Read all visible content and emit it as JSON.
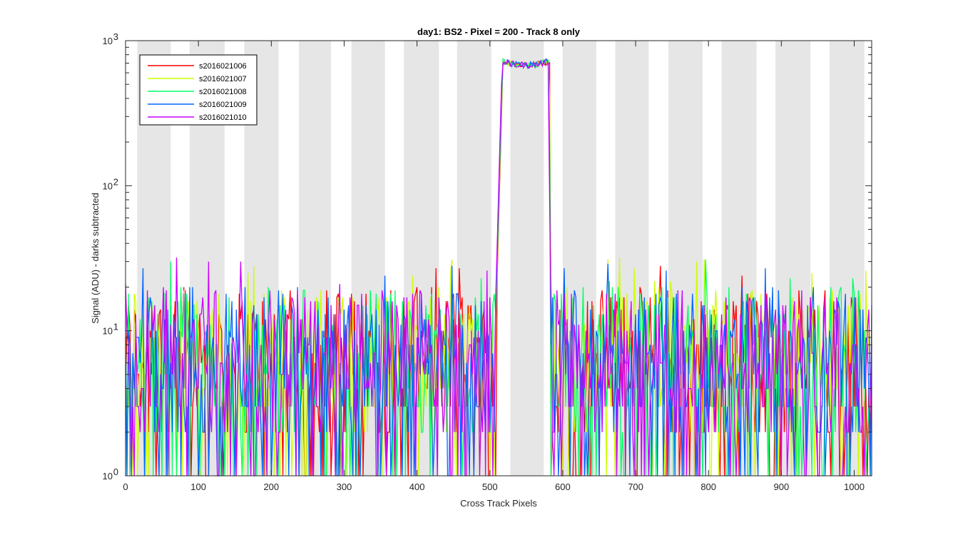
{
  "chart_data": {
    "type": "line",
    "title": "day1: BS2 - Pixel = 200 - Track 8 only",
    "xlabel": "Cross Track Pixels",
    "ylabel": "Signal (ADU) - darks subtracted",
    "xlim": [
      0,
      1024
    ],
    "ylim": [
      1,
      1000
    ],
    "yscale": "log",
    "xticks": [
      0,
      100,
      200,
      300,
      400,
      500,
      600,
      700,
      800,
      900,
      1000
    ],
    "xtick_labels": [
      "0",
      "100",
      "200",
      "300",
      "400",
      "500",
      "600",
      "700",
      "800",
      "900",
      "1000"
    ],
    "ytick_labels": [
      {
        "base": "10",
        "exp": "0"
      },
      {
        "base": "10",
        "exp": "1"
      },
      {
        "base": "10",
        "exp": "2"
      },
      {
        "base": "10",
        "exp": "3"
      }
    ],
    "legend_position": "top-left",
    "track_bands": [
      {
        "start": 16,
        "end": 62
      },
      {
        "start": 88,
        "end": 136
      },
      {
        "start": 163,
        "end": 210
      },
      {
        "start": 238,
        "end": 282
      },
      {
        "start": 310,
        "end": 356
      },
      {
        "start": 382,
        "end": 430
      },
      {
        "start": 455,
        "end": 502
      },
      {
        "start": 528,
        "end": 574
      },
      {
        "start": 600,
        "end": 646
      },
      {
        "start": 672,
        "end": 718
      },
      {
        "start": 745,
        "end": 792
      },
      {
        "start": 818,
        "end": 866
      },
      {
        "start": 892,
        "end": 940
      },
      {
        "start": 966,
        "end": 1014
      }
    ],
    "signal_region": {
      "start": 518,
      "end": 582,
      "rise_start": 508,
      "fall_end": 584,
      "level": 720,
      "ripple": 70
    },
    "series": [
      {
        "name": "s2016021006",
        "color": "#ff0000"
      },
      {
        "name": "s2016021007",
        "color": "#ccff00"
      },
      {
        "name": "s2016021008",
        "color": "#00ff66"
      },
      {
        "name": "s2016021009",
        "color": "#0066ff"
      },
      {
        "name": "s2016021010",
        "color": "#cc00ff"
      }
    ]
  }
}
